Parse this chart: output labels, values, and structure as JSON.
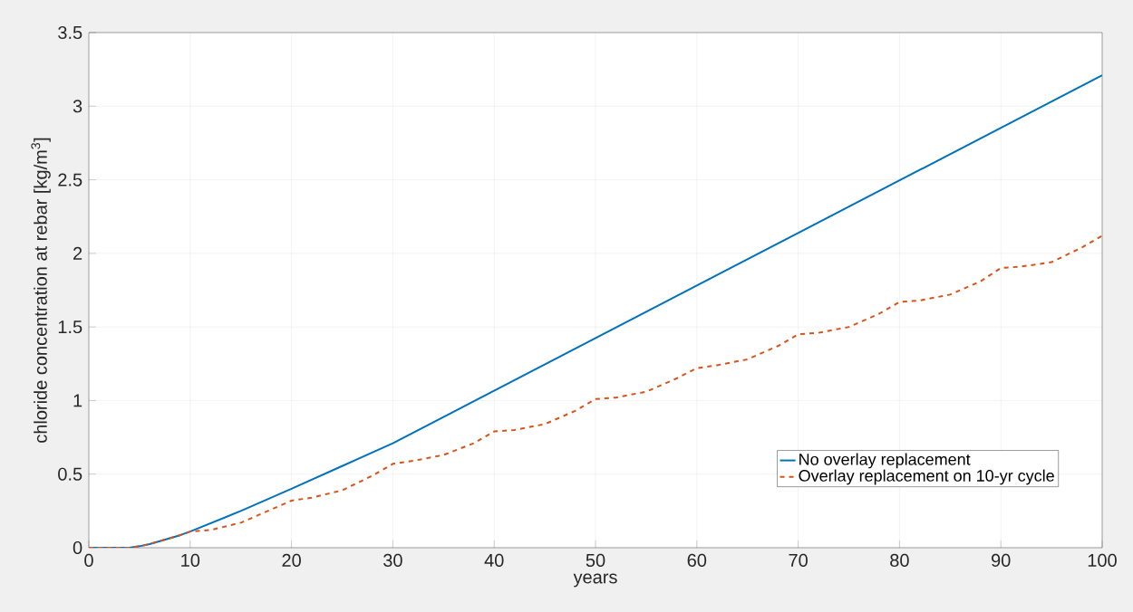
{
  "chart_data": {
    "type": "line",
    "xlabel": "years",
    "ylabel": "chloride concentration at rebar [kg/m$^{3}$]",
    "xlim": [
      0,
      100
    ],
    "ylim": [
      0,
      3.5
    ],
    "xticks": [
      0,
      10,
      20,
      30,
      40,
      50,
      60,
      70,
      80,
      90,
      100
    ],
    "yticks": [
      0,
      0.5,
      1,
      1.5,
      2,
      2.5,
      3,
      3.5
    ],
    "grid": true,
    "legend": "bottom right",
    "series": [
      {
        "name": "No overlay replacement",
        "color": "#0072bd",
        "line_style": "solid",
        "x": [
          0,
          2,
          4,
          5,
          6,
          7,
          8,
          9,
          10,
          15,
          20,
          25,
          30,
          100
        ],
        "values": [
          0,
          0,
          0,
          0.01,
          0.025,
          0.045,
          0.065,
          0.085,
          0.11,
          0.25,
          0.4,
          0.555,
          0.71,
          3.21
        ]
      },
      {
        "name": "Overlay replacement on 10-yr cycle",
        "color": "#d95319",
        "line_style": "dashed",
        "x": [
          0,
          2,
          4,
          5,
          6,
          7,
          8,
          9,
          10,
          12,
          15,
          18,
          20,
          22,
          25,
          28,
          30,
          32,
          35,
          38,
          40,
          42,
          45,
          48,
          50,
          52,
          55,
          58,
          60,
          62,
          65,
          68,
          70,
          72,
          75,
          78,
          80,
          82,
          85,
          88,
          90,
          92,
          95,
          98,
          100
        ],
        "values": [
          0,
          0,
          0,
          0.01,
          0.025,
          0.045,
          0.065,
          0.085,
          0.11,
          0.12,
          0.17,
          0.26,
          0.32,
          0.34,
          0.39,
          0.49,
          0.57,
          0.59,
          0.63,
          0.71,
          0.79,
          0.8,
          0.84,
          0.93,
          1.01,
          1.02,
          1.06,
          1.15,
          1.22,
          1.24,
          1.28,
          1.37,
          1.45,
          1.46,
          1.5,
          1.59,
          1.67,
          1.68,
          1.72,
          1.81,
          1.9,
          1.91,
          1.94,
          2.04,
          2.12
        ]
      }
    ]
  }
}
